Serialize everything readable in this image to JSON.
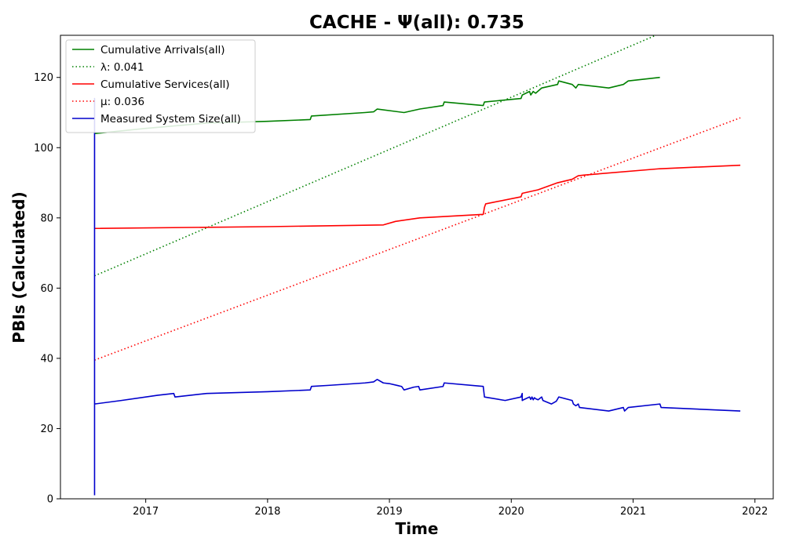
{
  "chart_data": {
    "type": "line",
    "title": "CACHE -  Ψ(all): 0.735",
    "xlabel": "Time",
    "ylabel": "PBIs (Calculated)",
    "xlim": [
      2016.3,
      2022.15
    ],
    "ylim": [
      0,
      132
    ],
    "x_ticks": [
      {
        "value": 2017,
        "label": "2017"
      },
      {
        "value": 2018,
        "label": "2018"
      },
      {
        "value": 2019,
        "label": "2019"
      },
      {
        "value": 2020,
        "label": "2020"
      },
      {
        "value": 2021,
        "label": "2021"
      },
      {
        "value": 2022,
        "label": "2022"
      }
    ],
    "y_ticks": [
      {
        "value": 0,
        "label": "0"
      },
      {
        "value": 20,
        "label": "20"
      },
      {
        "value": 40,
        "label": "40"
      },
      {
        "value": 60,
        "label": "60"
      },
      {
        "value": 80,
        "label": "80"
      },
      {
        "value": 100,
        "label": "100"
      },
      {
        "value": 120,
        "label": "120"
      }
    ],
    "grid": false,
    "legend_position": "top-left",
    "series": [
      {
        "name": "Cumulative Arrivals(all)",
        "color": "#008000",
        "style": "solid",
        "x": [
          2016.58,
          2017.0,
          2017.5,
          2018.0,
          2018.35,
          2018.36,
          2018.8,
          2018.87,
          2018.9,
          2019.12,
          2019.25,
          2019.44,
          2019.45,
          2019.77,
          2019.78,
          2020.08,
          2020.09,
          2020.12,
          2020.15,
          2020.16,
          2020.18,
          2020.2,
          2020.25,
          2020.38,
          2020.39,
          2020.5,
          2020.53,
          2020.55,
          2020.8,
          2020.92,
          2020.96,
          2021.22
        ],
        "y": [
          104,
          105.5,
          107,
          107.5,
          108,
          109,
          110,
          110.2,
          111,
          110,
          111,
          112,
          113,
          112,
          113,
          114,
          115,
          115.5,
          116,
          115,
          116,
          115.5,
          117,
          118,
          119,
          118,
          117,
          118,
          117,
          118,
          119,
          120
        ]
      },
      {
        "name": "λ: 0.041",
        "color": "#008000",
        "style": "dotted",
        "x": [
          2016.58,
          2021.22
        ],
        "y": [
          63.5,
          132.5
        ]
      },
      {
        "name": "Cumulative Services(all)",
        "color": "#ff0000",
        "style": "solid",
        "x": [
          2016.58,
          2018.0,
          2018.95,
          2019.05,
          2019.25,
          2019.77,
          2019.78,
          2019.79,
          2020.08,
          2020.09,
          2020.22,
          2020.3,
          2020.38,
          2020.5,
          2020.55,
          2020.6,
          2021.22,
          2021.88
        ],
        "y": [
          77,
          77.5,
          78,
          79,
          80,
          81,
          83,
          84,
          86,
          87,
          88,
          89,
          90,
          91,
          92,
          92.2,
          94,
          95
        ]
      },
      {
        "name": "μ: 0.036",
        "color": "#ff0000",
        "style": "dotted",
        "x": [
          2016.58,
          2021.88
        ],
        "y": [
          39.5,
          108.5
        ]
      },
      {
        "name": "Measured System Size(all)",
        "color": "#0000cc",
        "style": "solid",
        "x": [
          2016.58,
          2016.58,
          2016.58,
          2016.58,
          2016.8,
          2017.1,
          2017.23,
          2017.24,
          2017.5,
          2018.0,
          2018.35,
          2018.36,
          2018.5,
          2018.8,
          2018.87,
          2018.9,
          2018.95,
          2019.0,
          2019.1,
          2019.12,
          2019.2,
          2019.24,
          2019.25,
          2019.44,
          2019.45,
          2019.77,
          2019.78,
          2019.95,
          2020.08,
          2020.09,
          2020.09,
          2020.1,
          2020.15,
          2020.16,
          2020.17,
          2020.18,
          2020.19,
          2020.2,
          2020.22,
          2020.25,
          2020.26,
          2020.33,
          2020.37,
          2020.39,
          2020.5,
          2020.51,
          2020.53,
          2020.55,
          2020.56,
          2020.8,
          2020.92,
          2020.93,
          2020.96,
          2021.22,
          2021.23,
          2021.88
        ],
        "y": [
          1,
          114,
          27,
          27,
          28,
          29.5,
          30,
          29,
          30,
          30.5,
          31,
          32,
          32.3,
          33,
          33.3,
          34,
          33,
          32.8,
          32,
          31,
          31.8,
          32,
          31,
          32,
          33,
          32,
          29,
          28,
          29,
          30,
          28,
          28.2,
          29,
          28.3,
          29,
          28.2,
          28.8,
          28.5,
          28.2,
          29,
          28,
          27,
          27.8,
          29,
          28,
          27,
          26.5,
          27,
          26,
          25,
          26,
          25,
          26,
          27,
          26,
          25
        ]
      }
    ]
  }
}
